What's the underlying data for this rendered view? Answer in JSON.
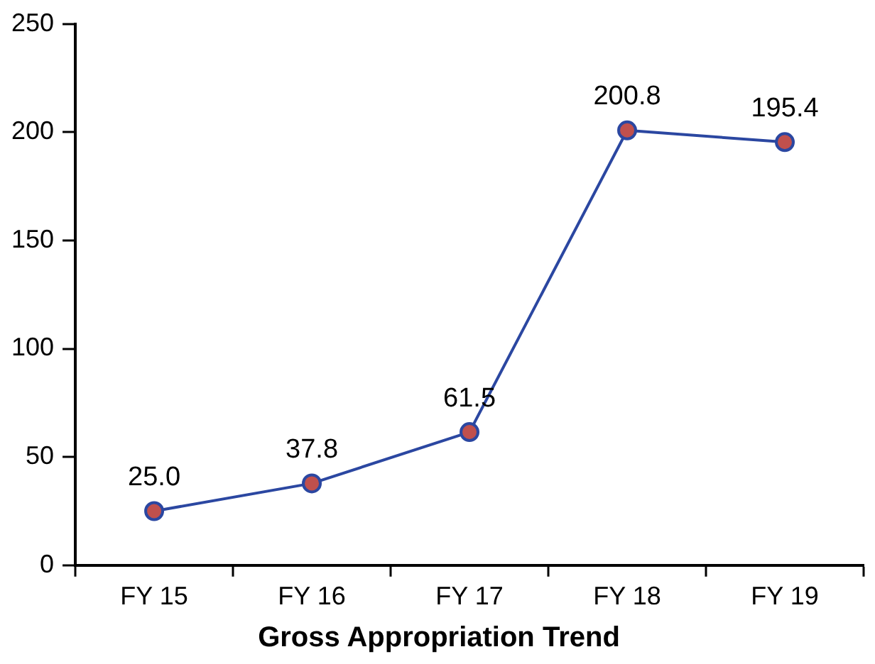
{
  "chart_data": {
    "type": "line",
    "title": "Gross Appropriation Trend",
    "categories": [
      "FY 15",
      "FY 16",
      "FY 17",
      "FY 18",
      "FY 19"
    ],
    "series": [
      {
        "color": "#2b47a1",
        "colors": [
          "#c0504d",
          "#c0504d",
          "#c0504d",
          "#c0504d",
          "#c0504d"
        ],
        "values": [
          25.0,
          37.8,
          61.5,
          200.8,
          195.4
        ],
        "value_labels": [
          "25.0",
          "37.8",
          "61.5",
          "200.8",
          "195.4"
        ]
      }
    ],
    "ylim": [
      0,
      250
    ],
    "yticks": [
      0,
      50,
      100,
      150,
      200,
      250
    ],
    "marker": "circle",
    "line_style": "solid"
  }
}
